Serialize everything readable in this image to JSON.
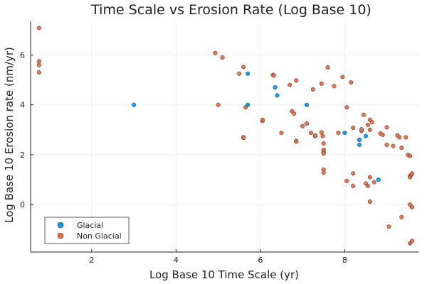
{
  "chart_data": {
    "type": "scatter",
    "title": "Time Scale vs Erosion Rate (Log Base 10)",
    "xlabel": "Log Base 10 Time Scale (yr)",
    "ylabel": "Log Base 10 Erosion rate (nm/yr)",
    "xlim": [
      0.55,
      9.75
    ],
    "ylim": [
      -1.9,
      7.35
    ],
    "xticks": [
      2,
      4,
      6,
      8
    ],
    "yticks": [
      0,
      2,
      4,
      6
    ],
    "grid": true,
    "legend_position": "bottom-left",
    "series": [
      {
        "name": "Glacial",
        "color": "#009af9",
        "points": [
          [
            3.0,
            4.0
          ],
          [
            5.7,
            5.25
          ],
          [
            5.7,
            4.0
          ],
          [
            6.35,
            4.7
          ],
          [
            6.4,
            4.38
          ],
          [
            7.1,
            4.0
          ],
          [
            8.0,
            2.88
          ],
          [
            8.35,
            2.6
          ],
          [
            8.35,
            2.4
          ],
          [
            8.5,
            2.75
          ],
          [
            8.8,
            1.0
          ]
        ]
      },
      {
        "name": "Non Glacial",
        "color": "#e26f46",
        "points": [
          [
            0.75,
            7.08
          ],
          [
            0.75,
            5.75
          ],
          [
            0.75,
            5.6
          ],
          [
            0.75,
            5.3
          ],
          [
            4.93,
            6.08
          ],
          [
            5.0,
            4.0
          ],
          [
            5.1,
            5.9
          ],
          [
            5.5,
            5.25
          ],
          [
            5.6,
            5.52
          ],
          [
            5.6,
            2.7
          ],
          [
            5.6,
            2.68
          ],
          [
            5.65,
            3.9
          ],
          [
            6.05,
            3.35
          ],
          [
            6.05,
            3.4
          ],
          [
            6.3,
            5.2
          ],
          [
            6.32,
            5.18
          ],
          [
            6.5,
            2.88
          ],
          [
            6.7,
            4.8
          ],
          [
            6.75,
            3.75
          ],
          [
            6.8,
            3.65
          ],
          [
            6.85,
            4.98
          ],
          [
            6.85,
            2.55
          ],
          [
            6.85,
            2.53
          ],
          [
            7.0,
            3.15
          ],
          [
            7.1,
            3.25
          ],
          [
            7.2,
            2.88
          ],
          [
            7.25,
            4.62
          ],
          [
            7.3,
            2.75
          ],
          [
            7.3,
            2.78
          ],
          [
            7.45,
            4.85
          ],
          [
            7.45,
            2.9
          ],
          [
            7.48,
            2.75
          ],
          [
            7.5,
            2.45
          ],
          [
            7.5,
            2.2
          ],
          [
            7.5,
            2.1
          ],
          [
            7.5,
            2.05
          ],
          [
            7.5,
            1.4
          ],
          [
            7.5,
            1.28
          ],
          [
            7.6,
            5.5
          ],
          [
            7.75,
            4.75
          ],
          [
            7.85,
            2.88
          ],
          [
            7.95,
            5.12
          ],
          [
            8.05,
            3.9
          ],
          [
            8.05,
            0.95
          ],
          [
            8.15,
            4.9
          ],
          [
            8.2,
            3.08
          ],
          [
            8.2,
            1.25
          ],
          [
            8.2,
            0.75
          ],
          [
            8.4,
            2.95
          ],
          [
            8.4,
            3.02
          ],
          [
            8.45,
            3.6
          ],
          [
            8.5,
            0.85
          ],
          [
            8.55,
            3.2
          ],
          [
            8.55,
            0.75
          ],
          [
            8.6,
            3.4
          ],
          [
            8.6,
            3.0
          ],
          [
            8.6,
            1.1
          ],
          [
            8.6,
            0.12
          ],
          [
            8.65,
            3.3
          ],
          [
            8.7,
            0.9
          ],
          [
            8.85,
            2.85
          ],
          [
            8.9,
            2.8
          ],
          [
            9.0,
            3.1
          ],
          [
            9.0,
            2.4
          ],
          [
            9.05,
            -0.88
          ],
          [
            9.15,
            2.35
          ],
          [
            9.25,
            2.78
          ],
          [
            9.3,
            2.7
          ],
          [
            9.35,
            2.28
          ],
          [
            9.35,
            -0.5
          ],
          [
            9.45,
            2.7
          ],
          [
            9.5,
            2.0
          ],
          [
            9.55,
            1.95
          ],
          [
            9.55,
            1.15
          ],
          [
            9.55,
            1.1
          ],
          [
            9.58,
            1.2
          ],
          [
            9.6,
            1.25
          ],
          [
            9.55,
            0.0
          ],
          [
            9.6,
            -0.1
          ],
          [
            9.55,
            -1.55
          ],
          [
            9.6,
            -1.45
          ]
        ]
      }
    ]
  }
}
